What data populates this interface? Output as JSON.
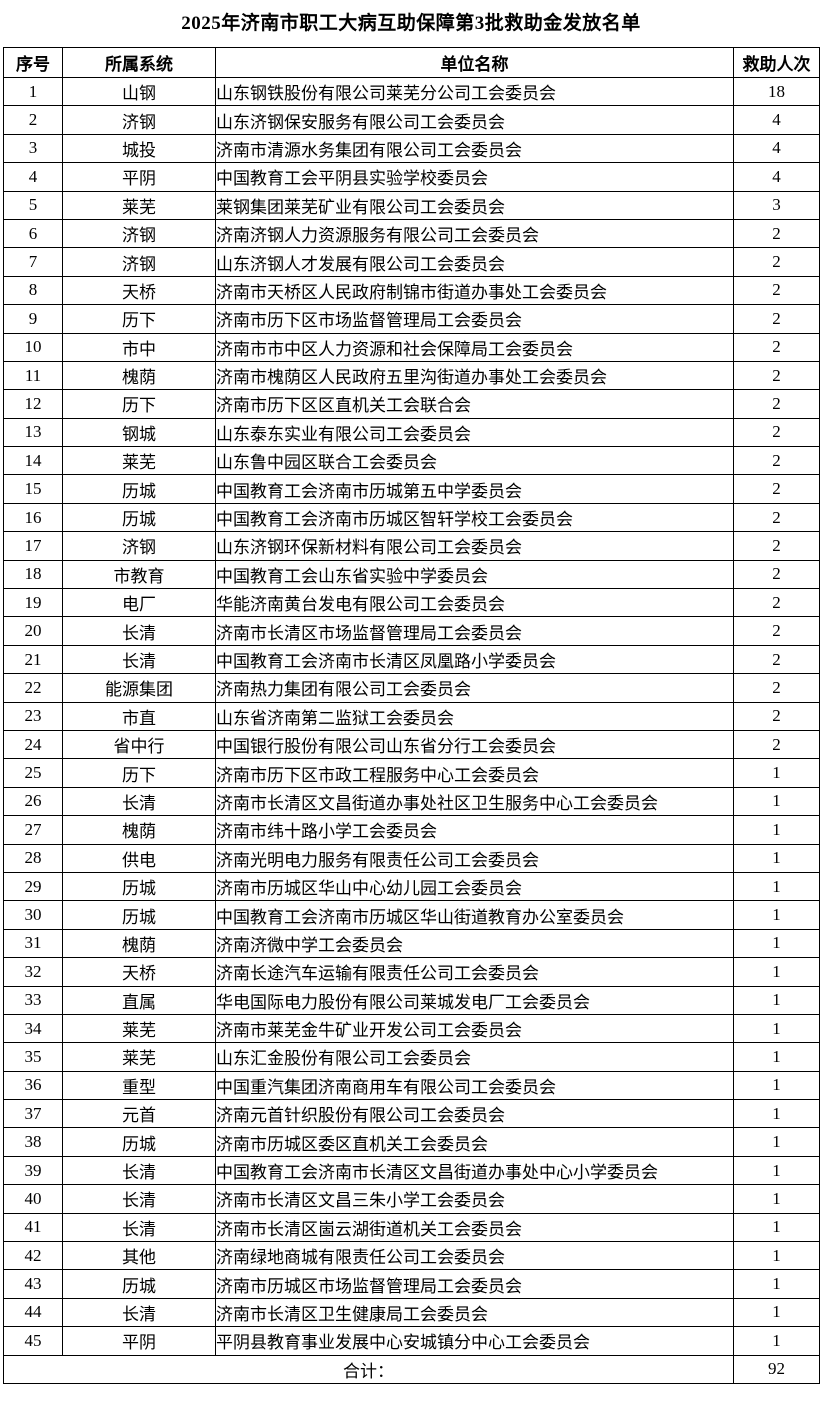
{
  "title": "2025年济南市职工大病互助保障第3批救助金发放名单",
  "table": {
    "headers": [
      "序号",
      "所属系统",
      "单位名称",
      "救助人次"
    ],
    "rows": [
      [
        "1",
        "山钢",
        "山东钢铁股份有限公司莱芜分公司工会委员会",
        "18"
      ],
      [
        "2",
        "济钢",
        "山东济钢保安服务有限公司工会委员会",
        "4"
      ],
      [
        "3",
        "城投",
        "济南市清源水务集团有限公司工会委员会",
        "4"
      ],
      [
        "4",
        "平阴",
        "中国教育工会平阴县实验学校委员会",
        "4"
      ],
      [
        "5",
        "莱芜",
        "莱钢集团莱芜矿业有限公司工会委员会",
        "3"
      ],
      [
        "6",
        "济钢",
        "济南济钢人力资源服务有限公司工会委员会",
        "2"
      ],
      [
        "7",
        "济钢",
        "山东济钢人才发展有限公司工会委员会",
        "2"
      ],
      [
        "8",
        "天桥",
        "济南市天桥区人民政府制锦市街道办事处工会委员会",
        "2"
      ],
      [
        "9",
        "历下",
        "济南市历下区市场监督管理局工会委员会",
        "2"
      ],
      [
        "10",
        "市中",
        "济南市市中区人力资源和社会保障局工会委员会",
        "2"
      ],
      [
        "11",
        "槐荫",
        "济南市槐荫区人民政府五里沟街道办事处工会委员会",
        "2"
      ],
      [
        "12",
        "历下",
        "济南市历下区区直机关工会联合会",
        "2"
      ],
      [
        "13",
        "钢城",
        "山东泰东实业有限公司工会委员会",
        "2"
      ],
      [
        "14",
        "莱芜",
        "山东鲁中园区联合工会委员会",
        "2"
      ],
      [
        "15",
        "历城",
        "中国教育工会济南市历城第五中学委员会",
        "2"
      ],
      [
        "16",
        "历城",
        "中国教育工会济南市历城区智轩学校工会委员会",
        "2"
      ],
      [
        "17",
        "济钢",
        "山东济钢环保新材料有限公司工会委员会",
        "2"
      ],
      [
        "18",
        "市教育",
        "中国教育工会山东省实验中学委员会",
        "2"
      ],
      [
        "19",
        "电厂",
        "华能济南黄台发电有限公司工会委员会",
        "2"
      ],
      [
        "20",
        "长清",
        "济南市长清区市场监督管理局工会委员会",
        "2"
      ],
      [
        "21",
        "长清",
        "中国教育工会济南市长清区凤凰路小学委员会",
        "2"
      ],
      [
        "22",
        "能源集团",
        "济南热力集团有限公司工会委员会",
        "2"
      ],
      [
        "23",
        "市直",
        "山东省济南第二监狱工会委员会",
        "2"
      ],
      [
        "24",
        "省中行",
        "中国银行股份有限公司山东省分行工会委员会",
        "2"
      ],
      [
        "25",
        "历下",
        "济南市历下区市政工程服务中心工会委员会",
        "1"
      ],
      [
        "26",
        "长清",
        "济南市长清区文昌街道办事处社区卫生服务中心工会委员会",
        "1"
      ],
      [
        "27",
        "槐荫",
        "济南市纬十路小学工会委员会",
        "1"
      ],
      [
        "28",
        "供电",
        "济南光明电力服务有限责任公司工会委员会",
        "1"
      ],
      [
        "29",
        "历城",
        "济南市历城区华山中心幼儿园工会委员会",
        "1"
      ],
      [
        "30",
        "历城",
        "中国教育工会济南市历城区华山街道教育办公室委员会",
        "1"
      ],
      [
        "31",
        "槐荫",
        "济南济微中学工会委员会",
        "1"
      ],
      [
        "32",
        "天桥",
        "济南长途汽车运输有限责任公司工会委员会",
        "1"
      ],
      [
        "33",
        "直属",
        "华电国际电力股份有限公司莱城发电厂工会委员会",
        "1"
      ],
      [
        "34",
        "莱芜",
        "济南市莱芜金牛矿业开发公司工会委员会",
        "1"
      ],
      [
        "35",
        "莱芜",
        "山东汇金股份有限公司工会委员会",
        "1"
      ],
      [
        "36",
        "重型",
        "中国重汽集团济南商用车有限公司工会委员会",
        "1"
      ],
      [
        "37",
        "元首",
        "济南元首针织股份有限公司工会委员会",
        "1"
      ],
      [
        "38",
        "历城",
        "济南市历城区委区直机关工会委员会",
        "1"
      ],
      [
        "39",
        "长清",
        "中国教育工会济南市长清区文昌街道办事处中心小学委员会",
        "1"
      ],
      [
        "40",
        "长清",
        "济南市长清区文昌三朱小学工会委员会",
        "1"
      ],
      [
        "41",
        "长清",
        "济南市长清区崮云湖街道机关工会委员会",
        "1"
      ],
      [
        "42",
        "其他",
        "济南绿地商城有限责任公司工会委员会",
        "1"
      ],
      [
        "43",
        "历城",
        "济南市历城区市场监督管理局工会委员会",
        "1"
      ],
      [
        "44",
        "长清",
        "济南市长清区卫生健康局工会委员会",
        "1"
      ],
      [
        "45",
        "平阴",
        "平阴县教育事业发展中心安城镇分中心工会委员会",
        "1"
      ]
    ],
    "total_label": "合计：",
    "total_value": "92"
  },
  "colors": {
    "text": "#000000",
    "border": "#000000",
    "background": "#ffffff"
  }
}
